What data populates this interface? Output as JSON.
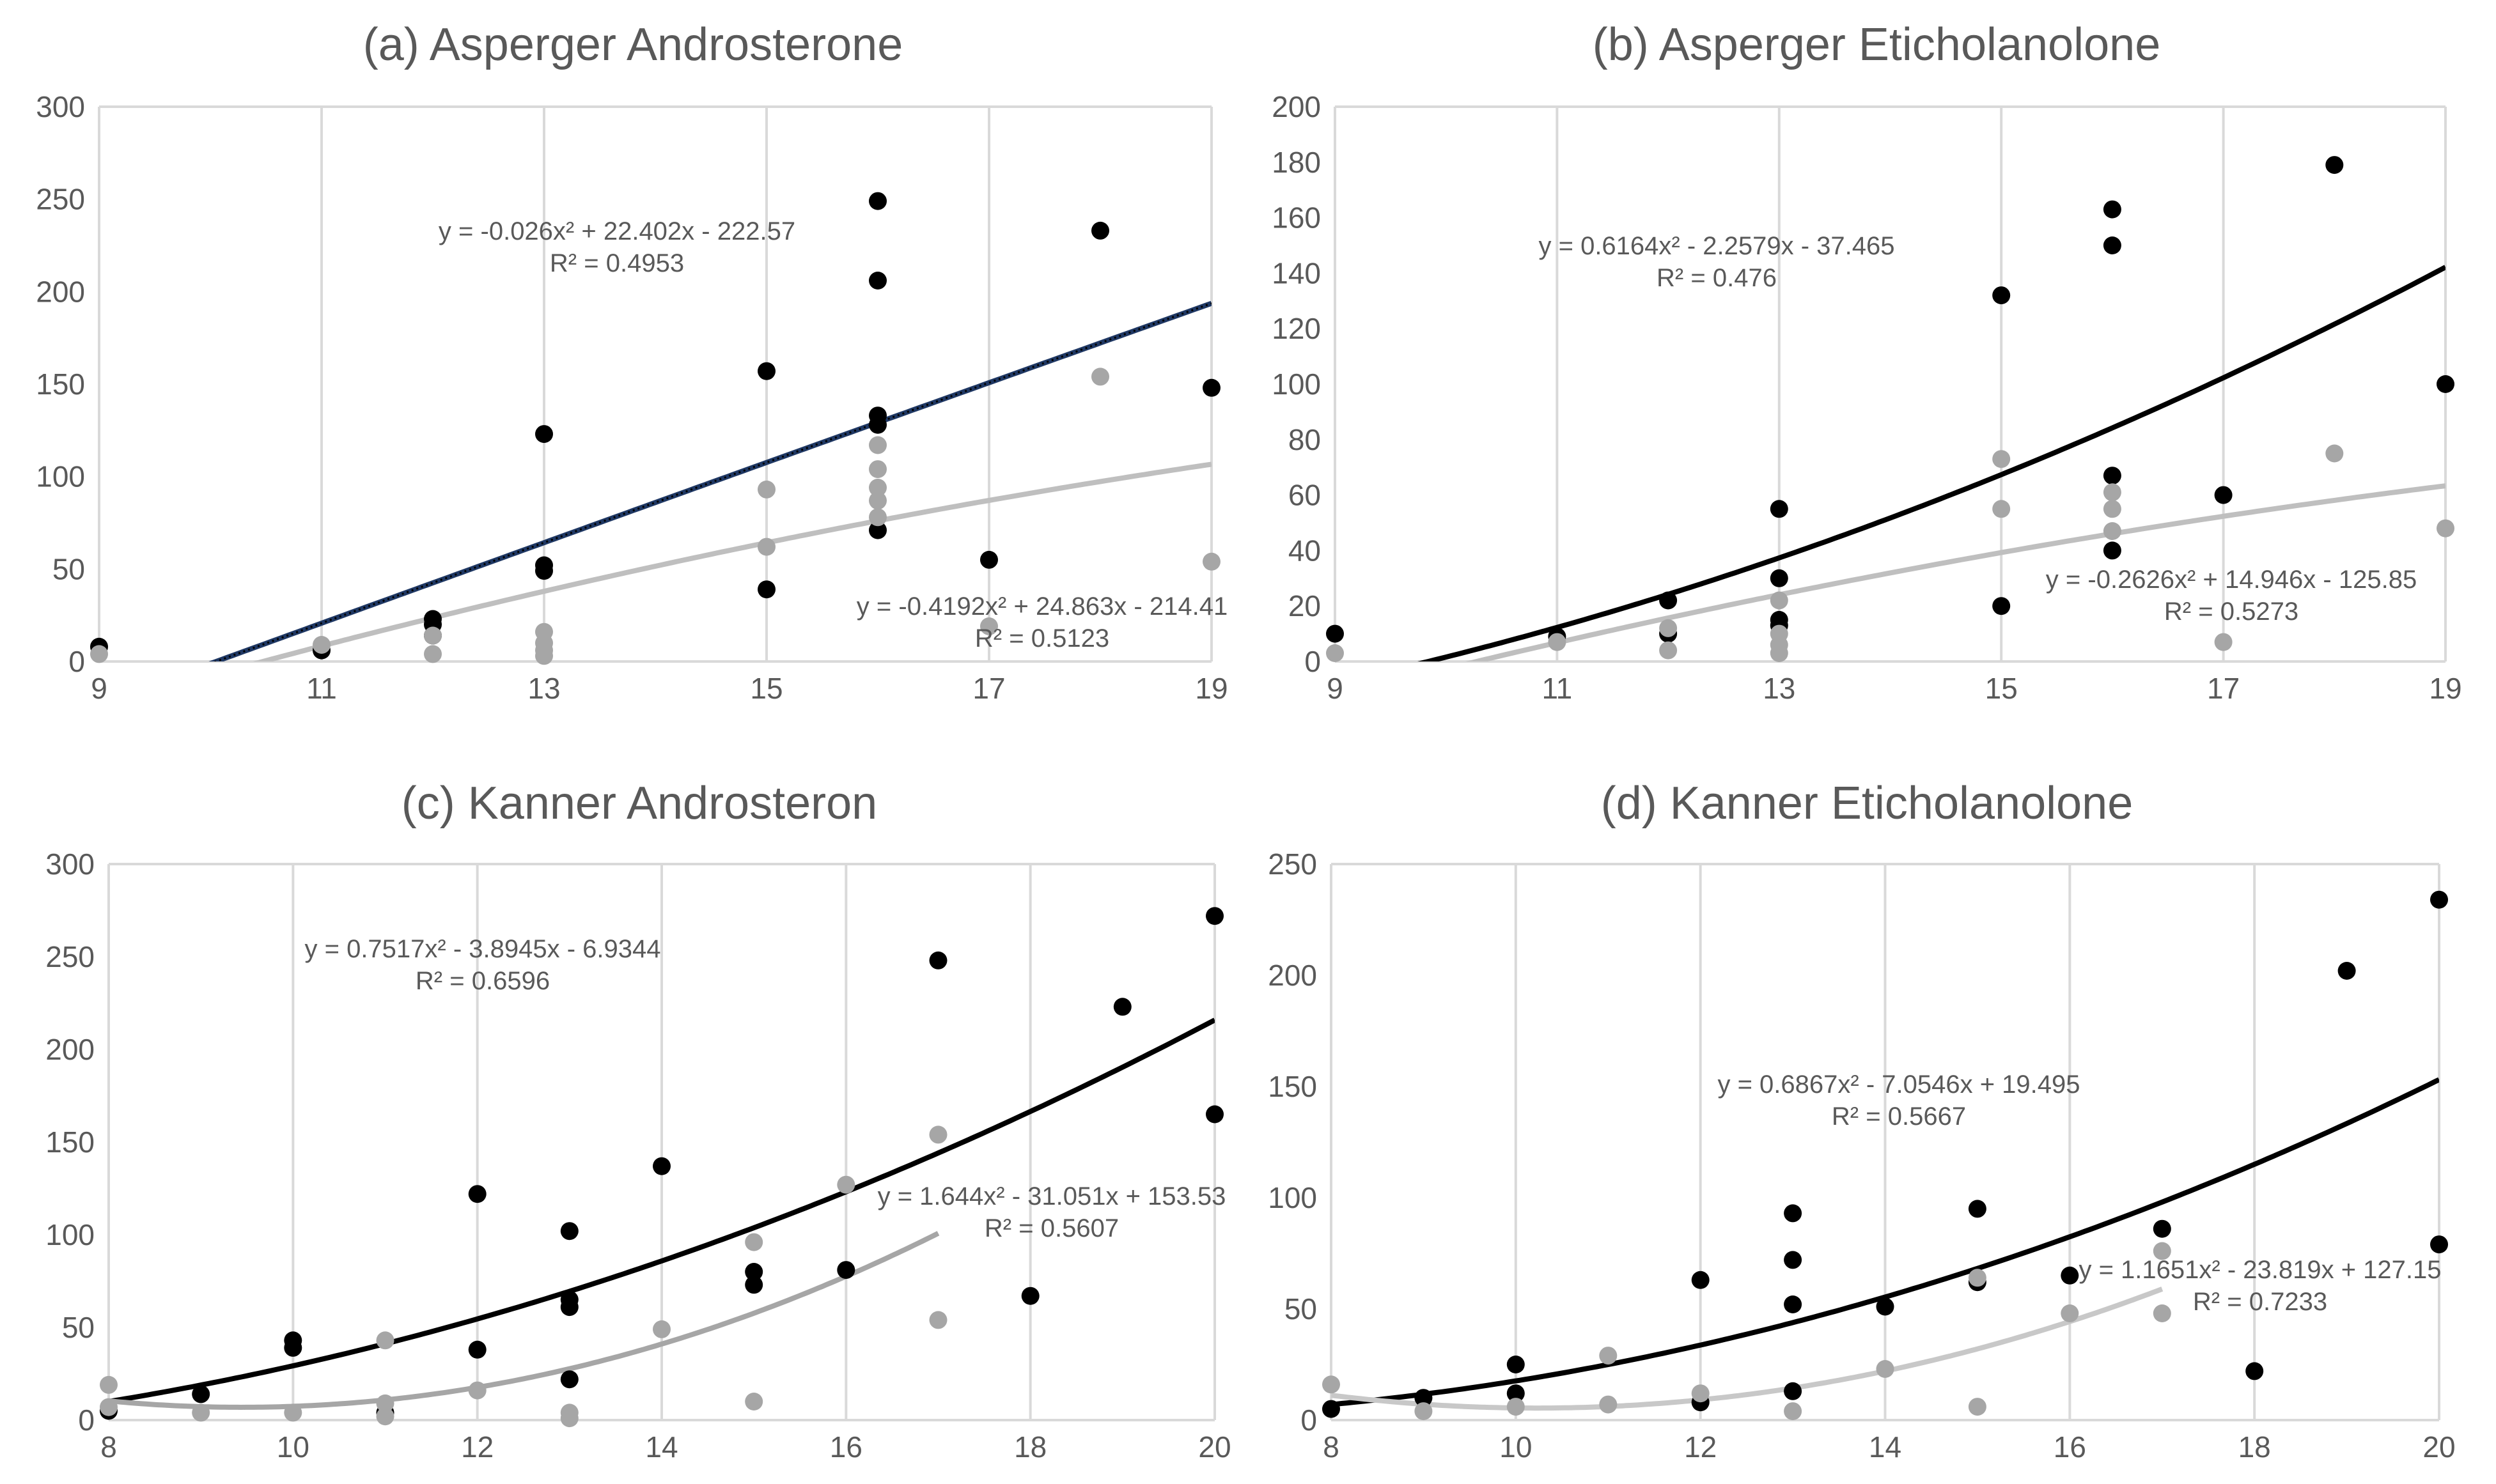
{
  "chart_data": [
    {
      "type": "scatter",
      "title": "(a) Asperger Androsterone",
      "xlim": [
        9,
        19
      ],
      "ylim": [
        0,
        300
      ],
      "xticks": [
        "9",
        "11",
        "13",
        "15",
        "17",
        "19"
      ],
      "yticks": [
        "0",
        "50",
        "100",
        "150",
        "200",
        "250",
        "300"
      ],
      "grid": "vertical",
      "series": [
        {
          "color": "#000000",
          "x": [
            9,
            11,
            12,
            12,
            12,
            13,
            13,
            13,
            15,
            15,
            16,
            16,
            16,
            16,
            16,
            17,
            18,
            19
          ],
          "y": [
            8,
            6,
            23,
            20,
            14,
            123,
            52,
            49,
            157,
            39,
            249,
            206,
            133,
            128,
            71,
            55,
            233,
            148
          ]
        },
        {
          "color": "#a6a6a6",
          "x": [
            9,
            11,
            12,
            12,
            13,
            13,
            13,
            13,
            15,
            15,
            16,
            16,
            16,
            16,
            16,
            17,
            18,
            19
          ],
          "y": [
            4,
            9,
            14,
            4,
            16,
            10,
            6,
            3,
            93,
            62,
            117,
            104,
            94,
            87,
            78,
            19,
            154,
            54
          ]
        }
      ],
      "trendlines": [
        {
          "color": "#1f3864",
          "style": "dotted",
          "a": -0.026,
          "b": 22.402,
          "c": -222.57,
          "equation": "y = -0.026x² + 22.402x - 222.57",
          "r2": "R² = 0.4953"
        },
        {
          "color": "#bfbfbf",
          "a": -0.4192,
          "b": 24.863,
          "c": -214.41,
          "equation": "y = -0.4192x² + 24.863x - 214.41",
          "r2": "R² = 0.5123"
        }
      ]
    },
    {
      "type": "scatter",
      "title": "(b) Asperger Eticholanolone",
      "xlim": [
        9,
        19
      ],
      "ylim": [
        0,
        200
      ],
      "xticks": [
        "9",
        "11",
        "13",
        "15",
        "17",
        "19"
      ],
      "yticks": [
        "0",
        "20",
        "40",
        "60",
        "80",
        "100",
        "120",
        "140",
        "160",
        "180",
        "200"
      ],
      "grid": "vertical",
      "series": [
        {
          "color": "#000000",
          "x": [
            9,
            11,
            12,
            12,
            13,
            13,
            13,
            13,
            15,
            15,
            16,
            16,
            16,
            16,
            17,
            18,
            19
          ],
          "y": [
            10,
            9,
            22,
            10,
            55,
            30,
            15,
            13,
            132,
            20,
            163,
            150,
            67,
            40,
            60,
            179,
            100
          ]
        },
        {
          "color": "#a6a6a6",
          "x": [
            9,
            11,
            12,
            12,
            13,
            13,
            13,
            13,
            15,
            15,
            16,
            16,
            16,
            17,
            18,
            19
          ],
          "y": [
            3,
            7,
            12,
            4,
            22,
            10,
            6,
            3,
            73,
            55,
            61,
            55,
            47,
            7,
            75,
            48
          ]
        }
      ],
      "trendlines": [
        {
          "color": "#000000",
          "a": 0.6164,
          "b": -2.2579,
          "c": -37.465,
          "equation": "y = 0.6164x² - 2.2579x - 37.465",
          "r2": "R² = 0.476"
        },
        {
          "color": "#bfbfbf",
          "a": -0.2626,
          "b": 14.946,
          "c": -125.85,
          "equation": "y = -0.2626x² + 14.946x - 125.85",
          "r2": "R² = 0.5273"
        }
      ]
    },
    {
      "type": "scatter",
      "title": "(c) Kanner Androsteron",
      "xlim": [
        8,
        20
      ],
      "ylim": [
        0,
        300
      ],
      "xticks": [
        "8",
        "10",
        "12",
        "14",
        "16",
        "18",
        "20"
      ],
      "yticks": [
        "0",
        "50",
        "100",
        "150",
        "200",
        "250",
        "300"
      ],
      "grid": "vertical",
      "series": [
        {
          "color": "#000000",
          "x": [
            8,
            9,
            10,
            10,
            11,
            12,
            12,
            13,
            13,
            13,
            13,
            14,
            15,
            15,
            16,
            17,
            18,
            19,
            20,
            20
          ],
          "y": [
            5,
            14,
            43,
            39,
            4,
            122,
            38,
            102,
            65,
            61,
            22,
            137,
            80,
            73,
            81,
            248,
            67,
            223,
            272,
            165
          ]
        },
        {
          "color": "#a6a6a6",
          "x": [
            8,
            8,
            9,
            10,
            11,
            11,
            11,
            12,
            13,
            13,
            14,
            15,
            15,
            16,
            17,
            17
          ],
          "y": [
            19,
            7,
            4,
            4,
            43,
            9,
            2,
            16,
            4,
            1,
            49,
            96,
            10,
            127,
            154,
            54
          ]
        }
      ],
      "trendlines": [
        {
          "color": "#000000",
          "a": 0.7517,
          "b": -3.8945,
          "c": -6.9344,
          "xmax": 20,
          "equation": "y = 0.7517x² - 3.8945x - 6.9344",
          "r2": "R² = 0.6596"
        },
        {
          "color": "#a6a6a6",
          "a": 1.644,
          "b": -31.051,
          "c": 153.53,
          "xmax": 17,
          "equation": "y = 1.644x² - 31.051x + 153.53",
          "r2": "R² = 0.5607"
        }
      ]
    },
    {
      "type": "scatter",
      "title": "(d) Kanner Eticholanolone",
      "xlim": [
        8,
        20
      ],
      "ylim": [
        0,
        250
      ],
      "xticks": [
        "8",
        "10",
        "12",
        "14",
        "16",
        "18",
        "20"
      ],
      "yticks": [
        "0",
        "50",
        "100",
        "150",
        "200",
        "250"
      ],
      "grid": "vertical",
      "series": [
        {
          "color": "#000000",
          "x": [
            8,
            9,
            10,
            10,
            12,
            12,
            13,
            13,
            13,
            13,
            14,
            15,
            15,
            16,
            17,
            18,
            19,
            20,
            20
          ],
          "y": [
            5,
            10,
            25,
            12,
            63,
            8,
            93,
            72,
            52,
            13,
            51,
            95,
            62,
            65,
            86,
            22,
            202,
            234,
            79
          ]
        },
        {
          "color": "#a6a6a6",
          "x": [
            8,
            9,
            10,
            11,
            11,
            12,
            13,
            14,
            15,
            15,
            16,
            17,
            17
          ],
          "y": [
            16,
            4,
            6,
            29,
            7,
            12,
            4,
            23,
            64,
            6,
            48,
            76,
            48
          ]
        }
      ],
      "trendlines": [
        {
          "color": "#000000",
          "a": 0.6867,
          "b": -7.0546,
          "c": 19.495,
          "xmax": 20,
          "equation": "y = 0.6867x² - 7.0546x + 19.495",
          "r2": "R² = 0.5667"
        },
        {
          "color": "#c8c8c8",
          "a": 1.1651,
          "b": -23.819,
          "c": 127.15,
          "xmax": 17,
          "equation": "y = 1.1651x² - 23.819x + 127.15",
          "r2": "R² = 0.7233"
        }
      ]
    }
  ]
}
